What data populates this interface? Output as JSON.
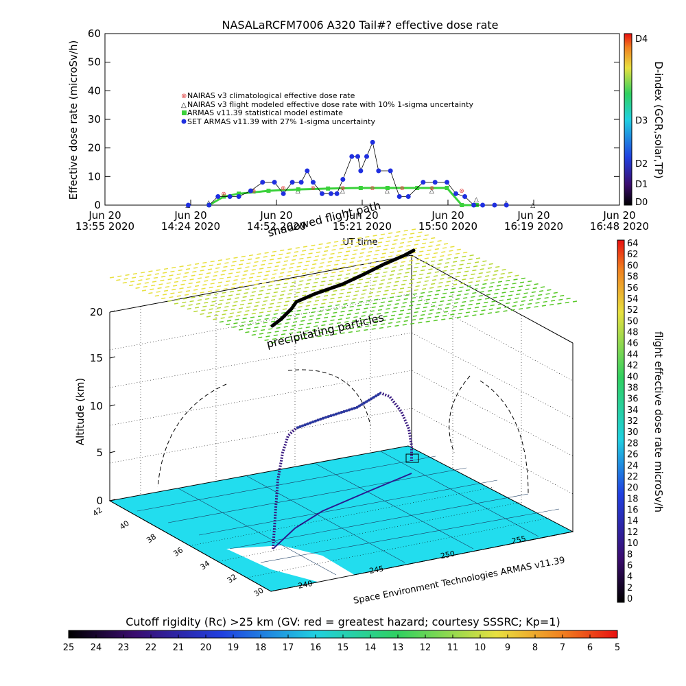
{
  "title": "NASALaRCFM7006  A320 Tail#? effective dose rate",
  "top_chart": {
    "ylabel": "Effective dose rate (microSv/h)",
    "yticks": [
      "0",
      "10",
      "20",
      "30",
      "40",
      "50",
      "60"
    ],
    "xticks": [
      {
        "l1": "Jun 20",
        "l2": "13:55 2020"
      },
      {
        "l1": "Jun 20",
        "l2": "14:24 2020"
      },
      {
        "l1": "Jun 20",
        "l2": "14:52 2020"
      },
      {
        "l1": "Jun 20",
        "l2": "15:21 2020"
      },
      {
        "l1": "Jun 20",
        "l2": "15:50 2020"
      },
      {
        "l1": "Jun 20",
        "l2": "16:19 2020"
      },
      {
        "l1": "Jun 20",
        "l2": "16:48 2020"
      }
    ],
    "xlabel": "UT time",
    "legend": [
      "NAIRAS v3 climatological effective dose rate",
      "NAIRAS v3 flight modeled effective dose rate with 10% 1-sigma uncertainty",
      "ARMAS v11.39 statistical model estimate",
      "SET ARMAS v11.39 with 27% 1-sigma uncertainty"
    ],
    "colorbar_label": "D-index (GCR,solar,TP)",
    "colorbar_ticks": [
      "D4",
      "D3",
      "D2",
      "D1",
      "D0"
    ]
  },
  "scene": {
    "ylabel": "Altitude (km)",
    "zticks": [
      "0",
      "5",
      "10",
      "15",
      "20"
    ],
    "lat_ticks": [
      "42",
      "40",
      "38",
      "36",
      "34",
      "32",
      "30"
    ],
    "lon_ticks": [
      "240",
      "245",
      "250",
      "255"
    ],
    "annotation_shadowed": "shadowed flight path",
    "annotation_precip": "precipitating particles",
    "credit": "Space Environment Technologies ARMAS v11.39",
    "colorbar_label": "flight effective dose rate microSv/h",
    "colorbar_ticks": [
      "64",
      "62",
      "60",
      "58",
      "56",
      "54",
      "52",
      "50",
      "48",
      "46",
      "44",
      "42",
      "40",
      "38",
      "36",
      "34",
      "32",
      "30",
      "28",
      "26",
      "24",
      "22",
      "20",
      "18",
      "16",
      "14",
      "12",
      "10",
      "8",
      "6",
      "4",
      "2",
      "0"
    ]
  },
  "bottom_bar": {
    "label": "Cutoff rigidity (Rc) >25 km (GV: red = greatest hazard; courtesy SSSRC; Kp=1)",
    "ticks": [
      "25",
      "24",
      "23",
      "22",
      "21",
      "20",
      "19",
      "18",
      "17",
      "16",
      "15",
      "14",
      "13",
      "12",
      "11",
      "10",
      "9",
      "8",
      "7",
      "6",
      "5"
    ]
  },
  "colors": {
    "set_armas": "#1f2fe0",
    "arms_stat": "#3bd13b",
    "nairas_clim": "#e04040",
    "surface": "#22ddee",
    "flight_path": "#3a1a80"
  },
  "chart_data": {
    "type": "scatter",
    "time_axis_ticks": [
      "13:55",
      "14:24",
      "14:52",
      "15:21",
      "15:50",
      "16:19",
      "16:48"
    ],
    "ylim": [
      0,
      60
    ],
    "series": [
      {
        "name": "SET ARMAS v11.39 with 27% 1-sigma uncertainty",
        "x": [
          "14:23",
          "14:30",
          "14:33",
          "14:37",
          "14:40",
          "14:44",
          "14:48",
          "14:52",
          "14:55",
          "14:58",
          "15:01",
          "15:03",
          "15:05",
          "15:08",
          "15:11",
          "15:13",
          "15:15",
          "15:18",
          "15:20",
          "15:21",
          "15:23",
          "15:25",
          "15:27",
          "15:31",
          "15:34",
          "15:37",
          "15:42",
          "15:46",
          "15:50",
          "15:53",
          "15:56",
          "15:59",
          "16:02",
          "16:06",
          "16:10"
        ],
        "y": [
          0,
          0,
          3,
          3,
          3,
          5,
          8,
          8,
          4,
          8,
          8,
          12,
          8,
          4,
          4,
          4,
          9,
          17,
          17,
          12,
          17,
          22,
          12,
          12,
          3,
          3,
          8,
          8,
          8,
          4,
          3,
          0,
          0,
          0,
          0
        ]
      },
      {
        "name": "ARMAS v11.39 statistical model estimate",
        "x": [
          "14:30",
          "14:35",
          "14:40",
          "14:50",
          "15:00",
          "15:10",
          "15:21",
          "15:30",
          "15:40",
          "15:50",
          "15:55",
          "16:00"
        ],
        "y": [
          0,
          3,
          4,
          5,
          5.5,
          5.8,
          6,
          6,
          6,
          6,
          0,
          0
        ]
      },
      {
        "name": "NAIRAS v3 climatological effective dose rate",
        "x": [
          "14:35",
          "14:45",
          "14:55",
          "15:05",
          "15:15",
          "15:25",
          "15:35",
          "15:45",
          "15:55"
        ],
        "y": [
          4,
          5,
          6,
          6,
          6,
          6,
          6,
          6,
          5
        ]
      },
      {
        "name": "NAIRAS v3 flight modeled effective dose rate with 10% 1-sigma uncertainty",
        "x": [
          "14:23",
          "14:30",
          "14:45",
          "15:00",
          "15:15",
          "15:30",
          "15:45",
          "16:00",
          "16:10",
          "16:19"
        ],
        "y": [
          0,
          1,
          5,
          5,
          5,
          5,
          5,
          2,
          1,
          0
        ]
      }
    ]
  }
}
